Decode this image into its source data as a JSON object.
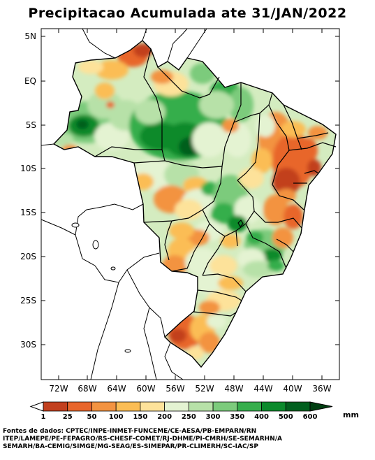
{
  "title": "Precipitacao Acumulada ate 31/JAN/2022",
  "lat_labels": [
    "5N",
    "EQ",
    "5S",
    "10S",
    "15S",
    "20S",
    "25S",
    "30S"
  ],
  "lon_labels": [
    "72W",
    "68W",
    "64W",
    "60W",
    "56W",
    "52W",
    "48W",
    "44W",
    "40W",
    "36W"
  ],
  "colorbar": {
    "unit": "mm",
    "breaks": [
      "1",
      "25",
      "50",
      "100",
      "150",
      "200",
      "250",
      "300",
      "350",
      "400",
      "500",
      "600"
    ],
    "colors": [
      "#ffffff",
      "#c2401e",
      "#e8662c",
      "#f39341",
      "#fbbd55",
      "#fde29a",
      "#e4f3d2",
      "#b7e1a8",
      "#7ccb7c",
      "#36ae4c",
      "#0b8a2c",
      "#015f1e",
      "#013f12"
    ]
  },
  "sources": {
    "line1": "Fontes de dados: CPTEC/INPE-INMET-FUNCEME/CE-AESA/PB-EMPARN/RN",
    "line2": "ITEP/LAMEPE/PE-FEPAGRO/RS-CHESF-COMET/RJ-DHME/PI-CMRH/SE-SEMARHN/A",
    "line3": "SEMARH/BA-CEMIG/SIMGE/MG-SEAG/ES-SIMEPAR/PR-CLIMERH/SC-IAC/SP"
  }
}
